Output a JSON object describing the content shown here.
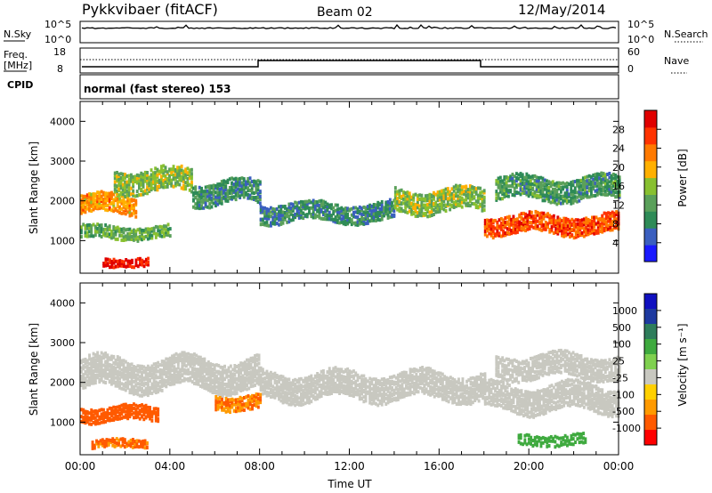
{
  "header": {
    "station": "Pykkvibaer (fitACF)",
    "beam": "Beam 02",
    "date": "12/May/2014"
  },
  "top_panels": {
    "nsky_label": "N.Sky",
    "nsky_ticks": [
      "10^5",
      "10^0"
    ],
    "nsearch_label": "N.Search",
    "nsearch_ticks": [
      "10^5",
      "10^0"
    ],
    "freq_label_1": "Freq.",
    "freq_label_2": "[MHz]",
    "freq_ticks": [
      "18",
      "8"
    ],
    "nave_label": "Nave",
    "nave_ticks": [
      "60",
      "0"
    ],
    "cpid_label": "CPID",
    "cpid_text": "normal (fast stereo) 153"
  },
  "colors": {
    "power_scale": [
      "#1a1aff",
      "#3b5fbf",
      "#2e8b57",
      "#5aa05a",
      "#88c030",
      "#ffb000",
      "#ff7a00",
      "#ff3300",
      "#e00000"
    ],
    "velocity_scale": [
      "#ff0000",
      "#ff5a00",
      "#ff9a00",
      "#ffd000",
      "#c8c8c0",
      "#7fd04f",
      "#3faa3f",
      "#2e7d5b",
      "#1e3aa0",
      "#1010c0"
    ]
  },
  "chart_data": [
    {
      "type": "heatmap",
      "title": "",
      "xlabel": "",
      "ylabel": "Slant Range [km]",
      "xlim": [
        "00:00",
        "24:00"
      ],
      "ylim": [
        180,
        4500
      ],
      "y_ticks": [
        "1000",
        "2000",
        "3000",
        "4000"
      ],
      "colorbar": {
        "label": "Power [dB]",
        "ticks": [
          "4",
          "8",
          "12",
          "16",
          "20",
          "24",
          "28"
        ],
        "range": [
          0,
          30
        ]
      },
      "echo_bands": [
        {
          "t_start": 0.0,
          "t_end": 2.5,
          "r_center": 1900,
          "width": 400,
          "value": 20
        },
        {
          "t_start": 1.5,
          "t_end": 5.0,
          "r_center": 2500,
          "width": 500,
          "value": 14
        },
        {
          "t_start": 5.0,
          "t_end": 8.0,
          "r_center": 2200,
          "width": 500,
          "value": 9
        },
        {
          "t_start": 8.0,
          "t_end": 14.0,
          "r_center": 1700,
          "width": 400,
          "value": 8
        },
        {
          "t_start": 14.0,
          "t_end": 18.0,
          "r_center": 2000,
          "width": 500,
          "value": 14
        },
        {
          "t_start": 18.0,
          "t_end": 24.0,
          "r_center": 1400,
          "width": 400,
          "value": 24
        },
        {
          "t_start": 18.5,
          "t_end": 24.0,
          "r_center": 2300,
          "width": 500,
          "value": 10
        },
        {
          "t_start": 0.0,
          "t_end": 4.0,
          "r_center": 1200,
          "width": 250,
          "value": 12
        },
        {
          "t_start": 1.0,
          "t_end": 3.0,
          "r_center": 450,
          "width": 150,
          "value": 28
        }
      ]
    },
    {
      "type": "heatmap",
      "title": "",
      "xlabel": "Time UT",
      "ylabel": "Slant Range [km]",
      "xlim": [
        "00:00",
        "24:00"
      ],
      "x_ticks": [
        "00:00",
        "04:00",
        "08:00",
        "12:00",
        "16:00",
        "20:00",
        "00:00"
      ],
      "ylim": [
        180,
        4500
      ],
      "y_ticks": [
        "1000",
        "2000",
        "3000",
        "4000"
      ],
      "colorbar": {
        "label": "Velocity [m s⁻¹]",
        "ticks": [
          "1000",
          "500",
          "100",
          "25",
          "-25",
          "-100",
          "-500",
          "-1000"
        ],
        "range": [
          -1000,
          1000
        ]
      },
      "echo_bands": [
        {
          "t_start": 0.0,
          "t_end": 8.0,
          "r_center": 2200,
          "width": 700,
          "value": 0
        },
        {
          "t_start": 8.0,
          "t_end": 18.0,
          "r_center": 1900,
          "width": 600,
          "value": 0
        },
        {
          "t_start": 18.0,
          "t_end": 24.0,
          "r_center": 1600,
          "width": 600,
          "value": 0
        },
        {
          "t_start": 18.5,
          "t_end": 24.0,
          "r_center": 2400,
          "width": 500,
          "value": 10
        },
        {
          "t_start": 0.0,
          "t_end": 3.5,
          "r_center": 1200,
          "width": 300,
          "value": -150
        },
        {
          "t_start": 0.5,
          "t_end": 3.0,
          "r_center": 450,
          "width": 150,
          "value": -120
        },
        {
          "t_start": 6.0,
          "t_end": 8.0,
          "r_center": 1500,
          "width": 300,
          "value": -100
        },
        {
          "t_start": 19.5,
          "t_end": 22.5,
          "r_center": 550,
          "width": 200,
          "value": 200
        }
      ]
    }
  ]
}
